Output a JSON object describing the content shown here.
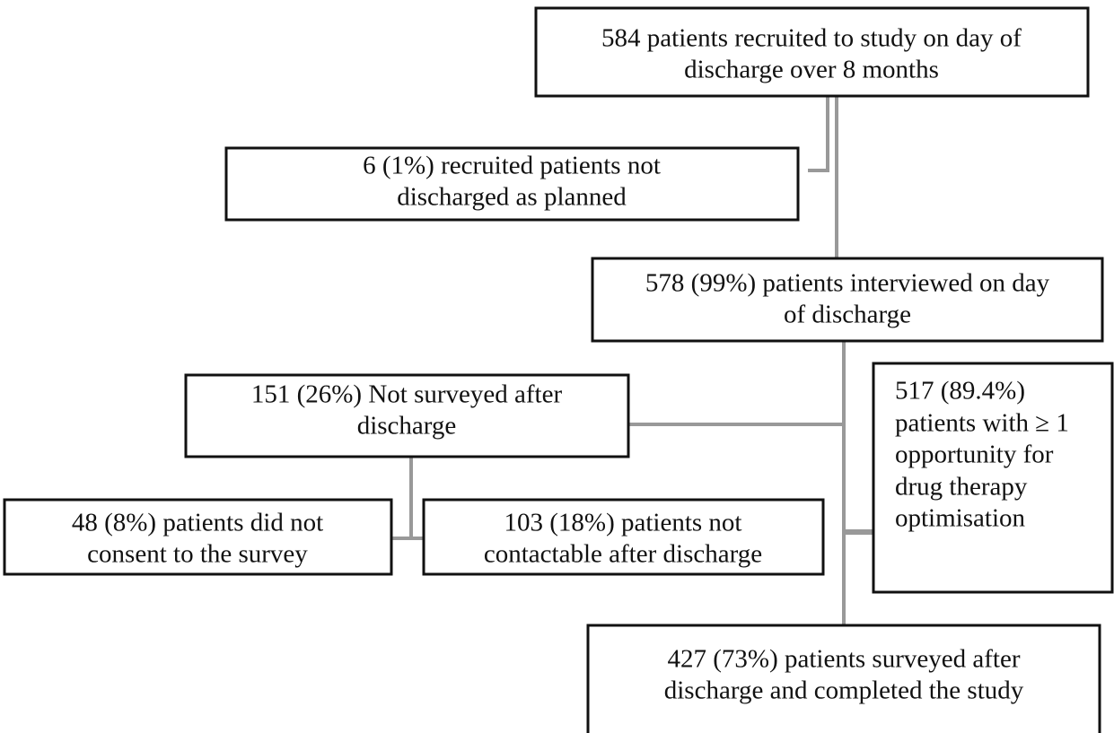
{
  "nodes": [
    {
      "lines": [
        "584 patients recruited to study on day of",
        "discharge over 8 months"
      ]
    },
    {
      "lines": [
        "6 (1%) recruited patients not",
        "discharged as planned"
      ]
    },
    {
      "lines": [
        "578 (99%) patients interviewed on day",
        "of discharge"
      ]
    },
    {
      "lines": [
        "151 (26%) Not surveyed after",
        "discharge"
      ]
    },
    {
      "lines": [
        "517 (89.4%)",
        "patients with ≥ 1",
        "opportunity for",
        "drug therapy",
        "optimisation"
      ]
    },
    {
      "lines": [
        "48 (8%) patients did not",
        "consent to the survey"
      ]
    },
    {
      "lines": [
        "103 (18%) patients not",
        "contactable after discharge"
      ]
    },
    {
      "lines": [
        "427 (73%) patients surveyed after",
        "discharge and completed the study"
      ]
    }
  ]
}
